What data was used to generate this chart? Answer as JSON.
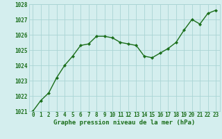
{
  "x": [
    0,
    1,
    2,
    3,
    4,
    5,
    6,
    7,
    8,
    9,
    10,
    11,
    12,
    13,
    14,
    15,
    16,
    17,
    18,
    19,
    20,
    21,
    22,
    23
  ],
  "y": [
    1021.0,
    1021.7,
    1022.2,
    1023.2,
    1024.0,
    1024.6,
    1025.3,
    1025.4,
    1025.9,
    1025.9,
    1025.8,
    1025.5,
    1025.4,
    1025.3,
    1024.6,
    1024.5,
    1024.8,
    1025.1,
    1025.5,
    1026.3,
    1027.0,
    1026.7,
    1027.4,
    1027.6
  ],
  "line_color": "#1a6e1a",
  "marker_color": "#1a6e1a",
  "bg_color": "#d4eeee",
  "grid_color": "#aad4d4",
  "axis_label_color": "#1a6e1a",
  "tick_color": "#1a6e1a",
  "xlabel": "Graphe pression niveau de la mer (hPa)",
  "ylim": [
    1021,
    1028
  ],
  "xlim": [
    -0.5,
    23.5
  ],
  "yticks": [
    1021,
    1022,
    1023,
    1024,
    1025,
    1026,
    1027,
    1028
  ],
  "xticks": [
    0,
    1,
    2,
    3,
    4,
    5,
    6,
    7,
    8,
    9,
    10,
    11,
    12,
    13,
    14,
    15,
    16,
    17,
    18,
    19,
    20,
    21,
    22,
    23
  ],
  "xlabel_fontsize": 6.5,
  "tick_fontsize": 5.5,
  "linewidth": 1.0,
  "markersize": 2.2
}
